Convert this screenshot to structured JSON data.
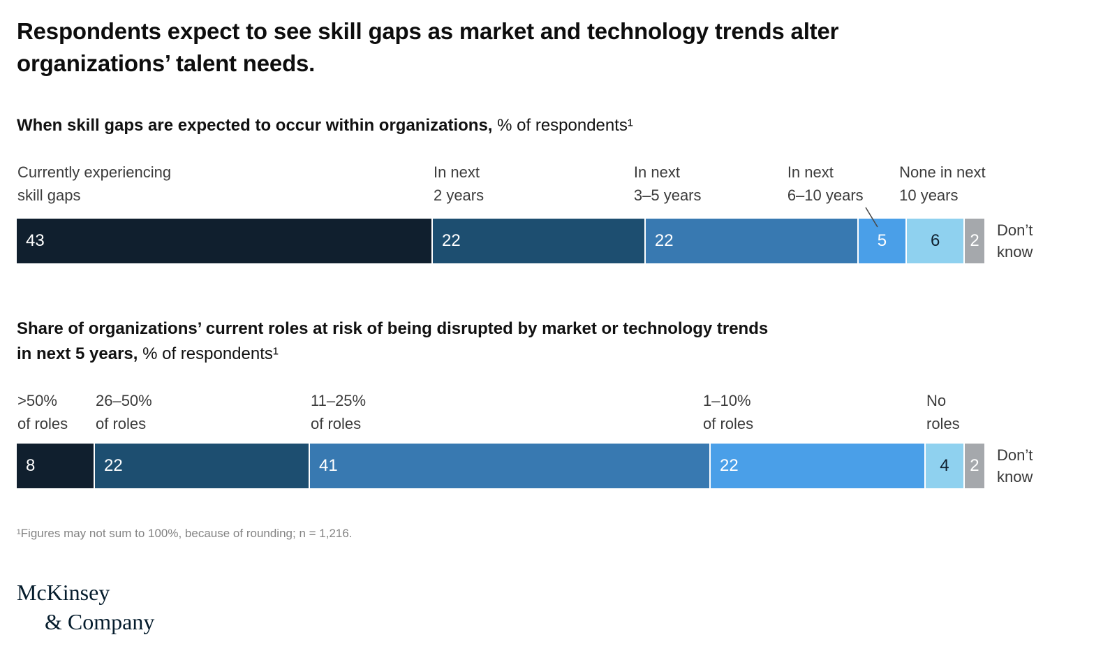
{
  "title_lines": [
    "Respondents expect to see skill gaps as market and technology trends alter",
    "organizations’ talent needs."
  ],
  "footnote": "¹Figures may not sum to 100%, because of rounding; n = 1,216.",
  "logo_lines": [
    "McKinsey",
    "& Company"
  ],
  "chart_data": [
    {
      "type": "bar",
      "stacked": true,
      "orientation": "horizontal",
      "heading_bold_lines": [
        "When skill gaps are expected to occur within organizations,"
      ],
      "heading_suffix": "% of respondents¹",
      "segments": [
        {
          "category_lines": [
            "Currently experiencing",
            "skill gaps"
          ],
          "value": 43,
          "color": "#101f2e",
          "value_color": "#ffffff"
        },
        {
          "category_lines": [
            "In next",
            "2 years"
          ],
          "value": 22,
          "color": "#1d4e70",
          "value_color": "#ffffff"
        },
        {
          "category_lines": [
            "In next",
            "3–5 years"
          ],
          "value": 22,
          "color": "#3879b1",
          "value_color": "#ffffff"
        },
        {
          "category_lines": [
            "In next",
            "6–10 years"
          ],
          "value": 5,
          "color": "#4a9fe8",
          "value_color": "#ffffff"
        },
        {
          "category_lines": [
            "None in next",
            "10 years"
          ],
          "value": 6,
          "color": "#8fd1ef",
          "value_color": "#10202e"
        },
        {
          "category_lines": [],
          "value": 2,
          "color": "#a5a8ac",
          "value_color": "#ffffff"
        }
      ],
      "side_label_lines": [
        "Don’t",
        "know"
      ]
    },
    {
      "type": "bar",
      "stacked": true,
      "orientation": "horizontal",
      "heading_bold_lines": [
        "Share of organizations’ current roles at risk of being disrupted by market or technology trends",
        "in next 5 years,"
      ],
      "heading_suffix": "% of respondents¹",
      "segments": [
        {
          "category_lines": [
            ">50%",
            "of roles"
          ],
          "value": 8,
          "color": "#101f2e",
          "value_color": "#ffffff"
        },
        {
          "category_lines": [
            "26–50%",
            "of roles"
          ],
          "value": 22,
          "color": "#1d4e70",
          "value_color": "#ffffff"
        },
        {
          "category_lines": [
            "11–25%",
            "of roles"
          ],
          "value": 41,
          "color": "#3879b1",
          "value_color": "#ffffff"
        },
        {
          "category_lines": [
            "1–10%",
            "of roles"
          ],
          "value": 22,
          "color": "#4a9fe8",
          "value_color": "#ffffff"
        },
        {
          "category_lines": [
            "No",
            "roles"
          ],
          "value": 4,
          "color": "#8fd1ef",
          "value_color": "#10202e"
        },
        {
          "category_lines": [],
          "value": 2,
          "color": "#a5a8ac",
          "value_color": "#ffffff"
        }
      ],
      "side_label_lines": [
        "Don’t",
        "know"
      ]
    }
  ]
}
